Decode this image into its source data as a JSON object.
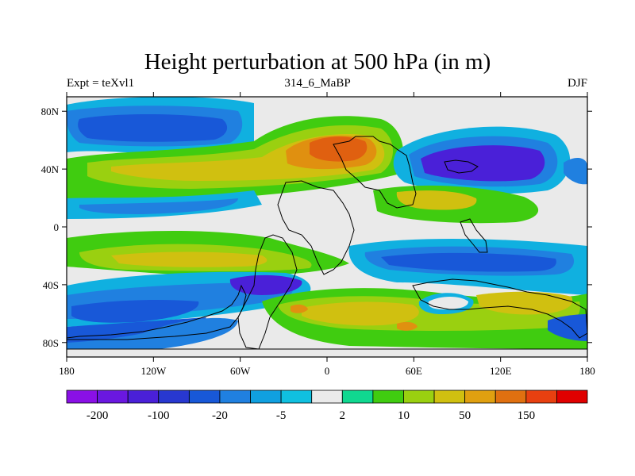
{
  "title": "Height perturbation at 500 hPa (in m)",
  "subtitle_left": "Expt = teXvl1",
  "subtitle_center": "314_6_MaBP",
  "subtitle_right": "DJF",
  "map": {
    "lon_range": [
      -180,
      180
    ],
    "lat_range": [
      -90,
      90
    ],
    "x_ticks": [
      {
        "v": -180,
        "label": "180"
      },
      {
        "v": -120,
        "label": "120W"
      },
      {
        "v": -60,
        "label": "60W"
      },
      {
        "v": 0,
        "label": "0"
      },
      {
        "v": 60,
        "label": "60E"
      },
      {
        "v": 120,
        "label": "120E"
      },
      {
        "v": 180,
        "label": "180"
      }
    ],
    "y_ticks": [
      {
        "v": 80,
        "label": "80N"
      },
      {
        "v": 40,
        "label": "40N"
      },
      {
        "v": 0,
        "label": "0"
      },
      {
        "v": -40,
        "label": "40S"
      },
      {
        "v": -80,
        "label": "80S"
      }
    ]
  },
  "colorbar": {
    "colors": [
      "#8a10e6",
      "#6a18e0",
      "#4a20d8",
      "#2838d0",
      "#1858d8",
      "#2080e0",
      "#10a0e0",
      "#10c0e0",
      "#eaeaea",
      "#10d890",
      "#40cc10",
      "#9ad010",
      "#d0c010",
      "#e0a010",
      "#e07010",
      "#e84010",
      "#e00000"
    ],
    "labels": [
      {
        "text": "-200",
        "index": 1
      },
      {
        "text": "-100",
        "index": 3
      },
      {
        "text": "-20",
        "index": 5
      },
      {
        "text": "-5",
        "index": 7
      },
      {
        "text": "2",
        "index": 9
      },
      {
        "text": "10",
        "index": 11
      },
      {
        "text": "50",
        "index": 13
      },
      {
        "text": "150",
        "index": 15
      }
    ]
  },
  "colors": {
    "neg_strong": "#4a20d8",
    "neg_mid": "#1858d8",
    "neg_weak": "#10b0e0",
    "neutral": "#eaeaea",
    "pos_weak": "#40cc10",
    "pos_light": "#9ad010",
    "pos_mid": "#d0c010",
    "pos_strong": "#e09010",
    "pos_peak": "#e06010"
  }
}
